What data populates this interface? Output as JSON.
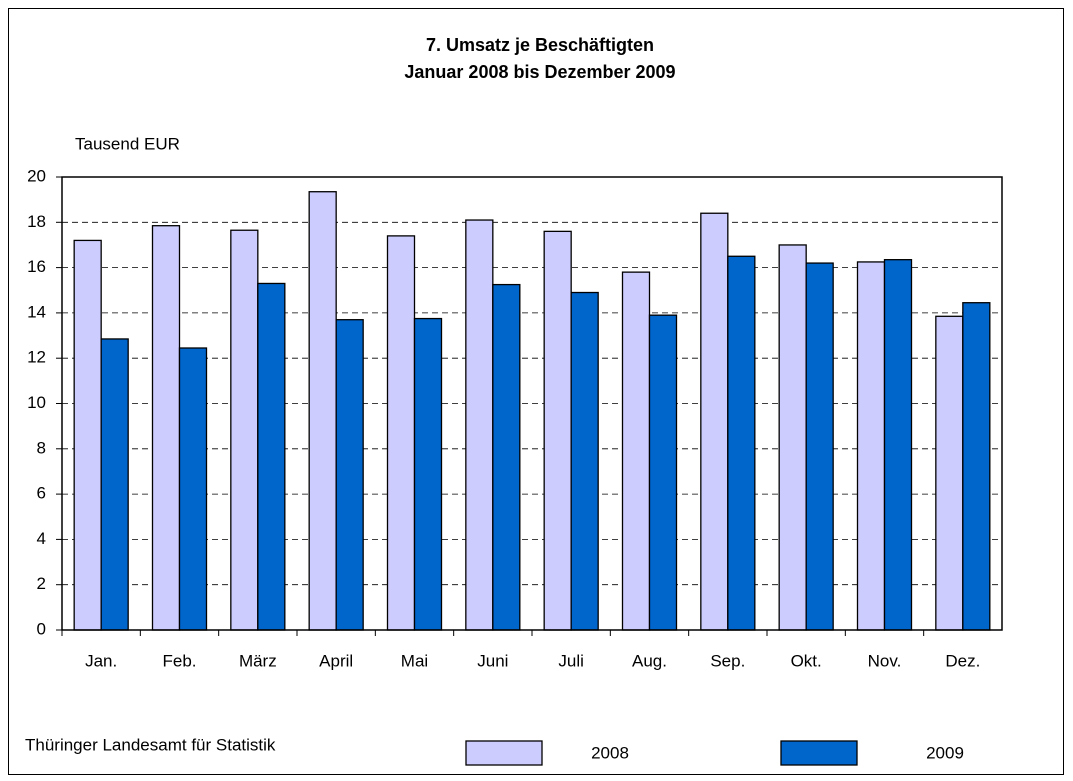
{
  "chart_data": {
    "type": "bar",
    "title": "7. Umsatz je Beschäftigten",
    "subtitle": "Januar 2008 bis Dezember 2009",
    "y_label": "Tausend EUR",
    "source": "Thüringer Landesamt für Statistik",
    "categories": [
      "Jan.",
      "Feb.",
      "März",
      "April",
      "Mai",
      "Juni",
      "Juli",
      "Aug.",
      "Sep.",
      "Okt.",
      "Nov.",
      "Dez."
    ],
    "series": [
      {
        "name": "2008",
        "color": "#ccccff",
        "values": [
          17.2,
          17.85,
          17.65,
          19.35,
          17.4,
          18.1,
          17.6,
          15.8,
          18.4,
          17.0,
          16.25,
          13.85
        ]
      },
      {
        "name": "2009",
        "color": "#0066cc",
        "values": [
          12.85,
          12.45,
          15.3,
          13.7,
          13.75,
          15.25,
          14.9,
          13.9,
          16.5,
          16.2,
          16.35,
          14.45
        ]
      }
    ],
    "ylim": [
      0,
      20
    ],
    "yticks": [
      0,
      2,
      4,
      6,
      8,
      10,
      12,
      14,
      16,
      18,
      20
    ],
    "grid": true,
    "legend": "bottom"
  }
}
